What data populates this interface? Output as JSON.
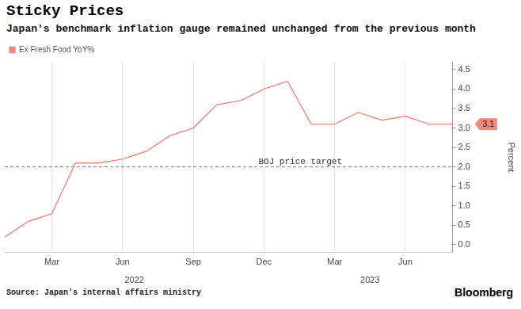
{
  "chart_data": {
    "type": "line",
    "title": "Sticky Prices",
    "subtitle": "Japan's benchmark inflation gauge remained unchanged from the previous month",
    "source": "Source: Japan's internal affairs ministry",
    "credit": "Bloomberg",
    "categories": [
      null,
      null,
      "Mar",
      null,
      null,
      "Jun",
      null,
      null,
      "Sep",
      null,
      null,
      "Dec",
      null,
      null,
      "Mar",
      null,
      null,
      "Jun",
      null,
      null
    ],
    "category_years": [
      "2022",
      "2022",
      "2022",
      "2022",
      "2022",
      "2022",
      "2022",
      "2022",
      "2022",
      "2022",
      "2022",
      "2022",
      "2023",
      "2023",
      "2023",
      "2023",
      "2023",
      "2023",
      "2023",
      "2023"
    ],
    "series": [
      {
        "name": "Ex Fresh Food YoY%",
        "color": "#f4877a",
        "values": [
          0.2,
          0.6,
          0.8,
          2.1,
          2.1,
          2.2,
          2.4,
          2.8,
          3.0,
          3.6,
          3.7,
          4.0,
          4.2,
          3.1,
          3.1,
          3.4,
          3.2,
          3.3,
          3.1,
          3.1
        ]
      }
    ],
    "y_label": "Percent",
    "ylim": [
      -0.2,
      4.7
    ],
    "yticks": [
      {
        "value": 0,
        "label": "0.0"
      },
      0.5,
      {
        "value": 1,
        "label": "1.0"
      },
      1.5,
      {
        "value": 2,
        "label": "2.0"
      },
      2.5,
      {
        "value": 3,
        "label": "3.0"
      },
      3.5,
      {
        "value": 4,
        "label": "4.0"
      },
      4.5
    ],
    "grid": "x",
    "legend": "top-left",
    "annotations": [
      {
        "type": "hline",
        "value": 2,
        "label": "BOJ price target",
        "line_style": "dashed"
      }
    ],
    "end_label": 3.1
  }
}
